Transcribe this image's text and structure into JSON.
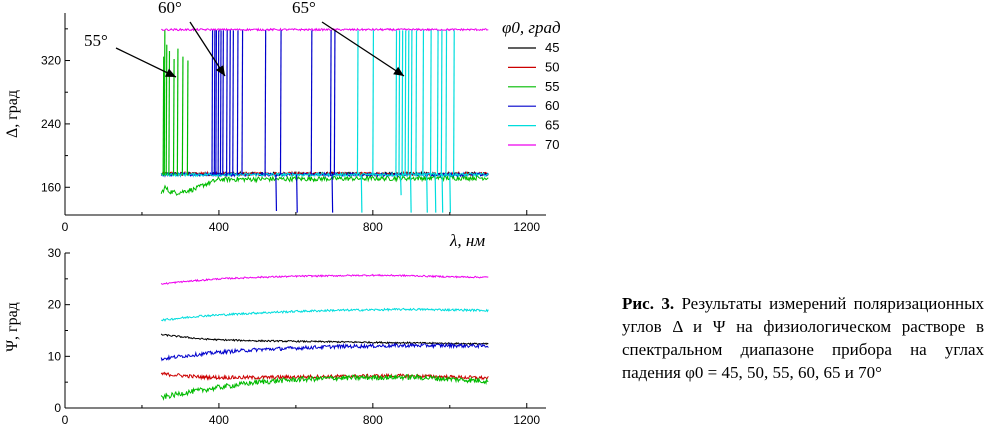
{
  "caption": {
    "label": "Рис. 3.",
    "text": "Результаты измерений поляризационных углов Δ и Ψ на физиологическом растворе в спектральном диапазоне прибора на углах падения φ0 = 45, 50, 55, 60, 65 и 70°"
  },
  "chart_data": [
    {
      "type": "line",
      "ylabel": "Δ, град",
      "xlabel": "λ, нм",
      "xlim": [
        0,
        1250
      ],
      "ylim": [
        125,
        380
      ],
      "xticks": [
        "0",
        "400",
        "800",
        "1200"
      ],
      "yticks": [
        "160",
        "240",
        "320"
      ],
      "legend_title": "φ0, град",
      "legend_position": "right",
      "annotations": [
        "55°",
        "60°",
        "65°"
      ],
      "series": [
        {
          "name": "45",
          "color": "#000000",
          "x": [
            250,
            1100
          ],
          "y": [
            177,
            177
          ]
        },
        {
          "name": "50",
          "color": "#cc0000",
          "x": [
            250,
            1100
          ],
          "y": [
            177,
            177
          ]
        },
        {
          "name": "55",
          "color": "#00bb00",
          "x": [
            250,
            260,
            270,
            290,
            310,
            340,
            360,
            400,
            1100
          ],
          "y": [
            152,
            160,
            155,
            153,
            155,
            158,
            163,
            170,
            172
          ]
        },
        {
          "name": "60",
          "color": "#0000cc",
          "x": [
            250,
            1100
          ],
          "y": [
            176,
            176
          ]
        },
        {
          "name": "65",
          "color": "#00dddd",
          "x": [
            250,
            1100
          ],
          "y": [
            176,
            176
          ]
        },
        {
          "name": "70",
          "color": "#ee00ee",
          "x": [
            250,
            1100
          ],
          "y": [
            359,
            359
          ]
        }
      ]
    },
    {
      "type": "line",
      "ylabel": "Ψ, град",
      "xlabel": "",
      "xlim": [
        0,
        1250
      ],
      "ylim": [
        0,
        30
      ],
      "xticks": [
        "0",
        "400",
        "800",
        "1200"
      ],
      "yticks": [
        "0",
        "10",
        "20",
        "30"
      ],
      "series": [
        {
          "name": "45",
          "color": "#000000",
          "x": [
            250,
            300,
            350,
            400,
            500,
            600,
            700,
            800,
            900,
            1000,
            1100
          ],
          "y": [
            14.2,
            13.8,
            13.4,
            13.2,
            13.0,
            12.9,
            12.8,
            12.7,
            12.6,
            12.5,
            12.4
          ]
        },
        {
          "name": "50",
          "color": "#cc0000",
          "x": [
            250,
            300,
            350,
            400,
            500,
            600,
            700,
            800,
            900,
            1000,
            1100
          ],
          "y": [
            6.6,
            6.3,
            6.0,
            5.9,
            5.9,
            6.0,
            6.1,
            6.2,
            6.2,
            6.0,
            5.8
          ]
        },
        {
          "name": "55",
          "color": "#00bb00",
          "x": [
            250,
            300,
            350,
            400,
            500,
            600,
            700,
            800,
            900,
            1000,
            1100
          ],
          "y": [
            2.0,
            2.8,
            3.4,
            4.0,
            5.0,
            5.5,
            5.8,
            5.9,
            6.0,
            5.6,
            5.2
          ]
        },
        {
          "name": "60",
          "color": "#0000cc",
          "x": [
            250,
            300,
            350,
            400,
            500,
            600,
            700,
            800,
            900,
            1000,
            1100
          ],
          "y": [
            9.5,
            10.0,
            10.4,
            10.8,
            11.3,
            11.6,
            11.9,
            12.0,
            12.1,
            12.1,
            12.0
          ]
        },
        {
          "name": "65",
          "color": "#00dddd",
          "x": [
            250,
            300,
            350,
            400,
            500,
            600,
            700,
            800,
            900,
            1000,
            1100
          ],
          "y": [
            17.0,
            17.4,
            17.8,
            18.0,
            18.4,
            18.7,
            18.9,
            19.0,
            19.1,
            19.0,
            18.9
          ]
        },
        {
          "name": "70",
          "color": "#ee00ee",
          "x": [
            250,
            300,
            350,
            400,
            500,
            600,
            700,
            800,
            900,
            1000,
            1100
          ],
          "y": [
            24.0,
            24.4,
            24.7,
            25.0,
            25.3,
            25.5,
            25.6,
            25.7,
            25.6,
            25.4,
            25.3
          ]
        }
      ]
    }
  ]
}
